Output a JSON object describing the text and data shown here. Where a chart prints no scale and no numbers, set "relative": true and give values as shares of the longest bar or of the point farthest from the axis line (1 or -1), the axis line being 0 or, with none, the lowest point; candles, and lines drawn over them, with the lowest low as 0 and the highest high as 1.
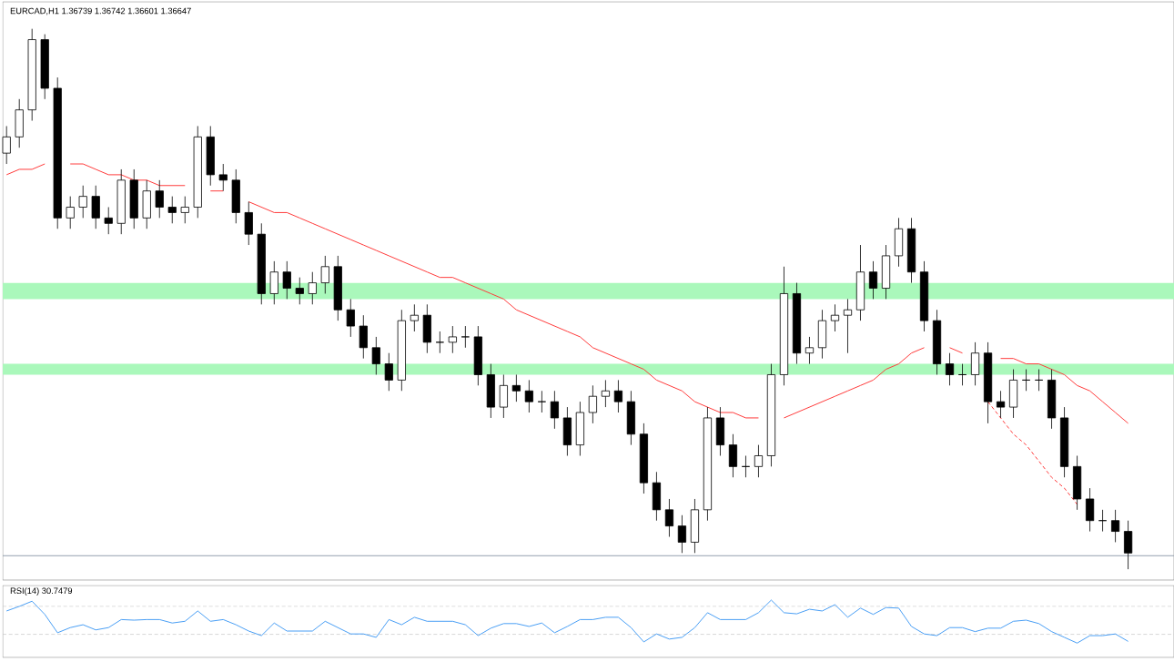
{
  "chart_data": [
    {
      "type": "candlestick",
      "title": "EURCAD,H1  1.36739 1.36742 1.36601 1.36647",
      "relative": true,
      "categories": [
        null,
        null,
        null,
        null,
        null,
        null,
        null,
        null,
        null,
        null,
        null,
        null,
        null,
        null,
        null,
        null,
        null,
        null,
        null,
        null,
        null,
        null,
        null,
        null,
        null,
        null,
        null,
        null,
        null,
        null,
        null,
        null,
        null,
        null,
        null,
        null,
        null,
        null,
        null,
        null,
        null,
        null,
        null,
        null,
        null,
        null,
        null,
        null,
        null,
        null,
        null,
        null,
        null,
        null,
        null,
        null,
        null,
        null,
        null,
        null,
        null,
        null,
        null,
        null,
        null,
        null,
        null,
        null,
        null,
        null,
        null,
        null,
        null,
        null,
        null,
        null,
        null,
        null,
        null,
        null,
        null,
        null,
        null,
        null,
        null,
        null,
        null,
        null,
        null
      ],
      "ohlc": [
        [
          0.77,
          0.82,
          0.75,
          0.8
        ],
        [
          0.8,
          0.87,
          0.78,
          0.85
        ],
        [
          0.85,
          1.0,
          0.83,
          0.98
        ],
        [
          0.98,
          0.99,
          0.87,
          0.89
        ],
        [
          0.89,
          0.91,
          0.63,
          0.65
        ],
        [
          0.65,
          0.69,
          0.63,
          0.67
        ],
        [
          0.67,
          0.71,
          0.65,
          0.69
        ],
        [
          0.69,
          0.71,
          0.63,
          0.65
        ],
        [
          0.65,
          0.67,
          0.62,
          0.64
        ],
        [
          0.64,
          0.74,
          0.62,
          0.72
        ],
        [
          0.72,
          0.74,
          0.63,
          0.65
        ],
        [
          0.65,
          0.72,
          0.63,
          0.7
        ],
        [
          0.7,
          0.72,
          0.65,
          0.67
        ],
        [
          0.67,
          0.69,
          0.64,
          0.66
        ],
        [
          0.66,
          0.69,
          0.64,
          0.67
        ],
        [
          0.67,
          0.82,
          0.65,
          0.8
        ],
        [
          0.8,
          0.82,
          0.71,
          0.73
        ],
        [
          0.73,
          0.75,
          0.7,
          0.72
        ],
        [
          0.72,
          0.74,
          0.64,
          0.66
        ],
        [
          0.66,
          0.68,
          0.6,
          0.62
        ],
        [
          0.62,
          0.64,
          0.49,
          0.51
        ],
        [
          0.51,
          0.57,
          0.49,
          0.55
        ],
        [
          0.55,
          0.57,
          0.5,
          0.52
        ],
        [
          0.52,
          0.54,
          0.49,
          0.51
        ],
        [
          0.51,
          0.55,
          0.49,
          0.53
        ],
        [
          0.53,
          0.58,
          0.51,
          0.56
        ],
        [
          0.56,
          0.58,
          0.46,
          0.48
        ],
        [
          0.48,
          0.5,
          0.43,
          0.45
        ],
        [
          0.45,
          0.47,
          0.39,
          0.41
        ],
        [
          0.41,
          0.43,
          0.36,
          0.38
        ],
        [
          0.38,
          0.4,
          0.33,
          0.35
        ],
        [
          0.35,
          0.48,
          0.33,
          0.46
        ],
        [
          0.46,
          0.49,
          0.44,
          0.47
        ],
        [
          0.47,
          0.49,
          0.4,
          0.42
        ],
        [
          0.42,
          0.44,
          0.4,
          0.42
        ],
        [
          0.42,
          0.45,
          0.4,
          0.43
        ],
        [
          0.43,
          0.45,
          0.41,
          0.43
        ],
        [
          0.43,
          0.45,
          0.34,
          0.36
        ],
        [
          0.36,
          0.38,
          0.28,
          0.3
        ],
        [
          0.3,
          0.36,
          0.28,
          0.34
        ],
        [
          0.34,
          0.36,
          0.31,
          0.33
        ],
        [
          0.33,
          0.35,
          0.29,
          0.31
        ],
        [
          0.31,
          0.33,
          0.29,
          0.31
        ],
        [
          0.31,
          0.33,
          0.26,
          0.28
        ],
        [
          0.28,
          0.3,
          0.21,
          0.23
        ],
        [
          0.23,
          0.31,
          0.21,
          0.29
        ],
        [
          0.29,
          0.34,
          0.27,
          0.32
        ],
        [
          0.32,
          0.35,
          0.3,
          0.33
        ],
        [
          0.33,
          0.35,
          0.29,
          0.31
        ],
        [
          0.31,
          0.33,
          0.23,
          0.25
        ],
        [
          0.25,
          0.27,
          0.14,
          0.16
        ],
        [
          0.16,
          0.18,
          0.09,
          0.11
        ],
        [
          0.11,
          0.13,
          0.06,
          0.08
        ],
        [
          0.08,
          0.1,
          0.03,
          0.05
        ],
        [
          0.05,
          0.13,
          0.03,
          0.11
        ],
        [
          0.11,
          0.3,
          0.09,
          0.28
        ],
        [
          0.28,
          0.3,
          0.21,
          0.23
        ],
        [
          0.23,
          0.25,
          0.17,
          0.19
        ],
        [
          0.19,
          0.21,
          0.17,
          0.19
        ],
        [
          0.19,
          0.23,
          0.17,
          0.21
        ],
        [
          0.21,
          0.38,
          0.19,
          0.36
        ],
        [
          0.36,
          0.56,
          0.34,
          0.51
        ],
        [
          0.51,
          0.53,
          0.38,
          0.4
        ],
        [
          0.4,
          0.43,
          0.38,
          0.41
        ],
        [
          0.41,
          0.48,
          0.39,
          0.46
        ],
        [
          0.46,
          0.49,
          0.44,
          0.47
        ],
        [
          0.47,
          0.5,
          0.4,
          0.48
        ],
        [
          0.48,
          0.6,
          0.46,
          0.55
        ],
        [
          0.55,
          0.57,
          0.5,
          0.52
        ],
        [
          0.52,
          0.6,
          0.5,
          0.58
        ],
        [
          0.58,
          0.65,
          0.56,
          0.63
        ],
        [
          0.63,
          0.65,
          0.53,
          0.55
        ],
        [
          0.55,
          0.57,
          0.44,
          0.46
        ],
        [
          0.46,
          0.48,
          0.36,
          0.38
        ],
        [
          0.38,
          0.4,
          0.34,
          0.36
        ],
        [
          0.36,
          0.38,
          0.34,
          0.36
        ],
        [
          0.36,
          0.42,
          0.34,
          0.4
        ],
        [
          0.4,
          0.42,
          0.27,
          0.31
        ],
        [
          0.31,
          0.33,
          0.28,
          0.3
        ],
        [
          0.3,
          0.37,
          0.28,
          0.35
        ],
        [
          0.35,
          0.37,
          0.33,
          0.35
        ],
        [
          0.35,
          0.37,
          0.33,
          0.35
        ],
        [
          0.35,
          0.37,
          0.26,
          0.28
        ],
        [
          0.28,
          0.3,
          0.17,
          0.19
        ],
        [
          0.19,
          0.21,
          0.11,
          0.13
        ],
        [
          0.13,
          0.15,
          0.07,
          0.09
        ],
        [
          0.09,
          0.11,
          0.07,
          0.09
        ],
        [
          0.09,
          0.11,
          0.05,
          0.07
        ],
        [
          0.07,
          0.09,
          0.0,
          0.03
        ]
      ],
      "series": [
        {
          "type": "line",
          "color": "#ff3c3c",
          "values": [
            0.73,
            0.74,
            0.74,
            0.75,
            null,
            0.75,
            0.75,
            0.74,
            0.73,
            0.73,
            0.72,
            0.72,
            0.71,
            0.71,
            0.71,
            null,
            0.7,
            0.7,
            null,
            0.68,
            0.67,
            0.66,
            0.66,
            0.65,
            0.64,
            0.63,
            0.62,
            0.61,
            0.6,
            0.59,
            0.58,
            0.57,
            0.56,
            0.55,
            0.54,
            0.54,
            0.53,
            0.52,
            0.51,
            0.5,
            0.48,
            0.47,
            0.46,
            0.45,
            0.44,
            0.43,
            0.41,
            0.4,
            0.39,
            0.38,
            0.37,
            0.35,
            0.34,
            0.33,
            0.31,
            0.3,
            0.29,
            0.29,
            0.28,
            0.28,
            null,
            0.28,
            0.29,
            0.3,
            0.31,
            0.32,
            0.33,
            0.34,
            0.35,
            0.37,
            0.38,
            0.4,
            0.41,
            null,
            0.41,
            0.4,
            null,
            null,
            0.39,
            0.39,
            0.38,
            0.38,
            0.37,
            0.36,
            0.34,
            0.33,
            0.31,
            0.29,
            0.27
          ]
        },
        {
          "type": "line",
          "line_style": "dashed",
          "color": "#ff3c3c",
          "values": [
            null,
            null,
            null,
            null,
            null,
            null,
            null,
            null,
            null,
            null,
            null,
            null,
            null,
            null,
            null,
            null,
            null,
            null,
            null,
            null,
            null,
            null,
            null,
            null,
            null,
            null,
            null,
            null,
            null,
            null,
            null,
            null,
            null,
            null,
            null,
            null,
            null,
            null,
            null,
            null,
            null,
            null,
            null,
            null,
            null,
            null,
            null,
            null,
            null,
            null,
            null,
            null,
            null,
            null,
            null,
            null,
            null,
            null,
            null,
            null,
            null,
            null,
            null,
            null,
            null,
            null,
            null,
            null,
            null,
            null,
            null,
            null,
            null,
            null,
            null,
            null,
            null,
            0.31,
            0.28,
            0.25,
            0.23,
            0.2,
            0.17,
            0.15,
            0.12,
            null,
            null,
            null,
            null
          ]
        }
      ],
      "bands": [
        {
          "axis": "y",
          "from": 0.5,
          "to": 0.53,
          "color": "#aaf8bb"
        },
        {
          "axis": "y",
          "from": 0.36,
          "to": 0.38,
          "color": "#aaf8bb"
        }
      ],
      "ref_lines": [
        {
          "axis": "y",
          "value": 0.025,
          "color": "#8c99a8"
        }
      ]
    },
    {
      "type": "line",
      "title": "RSI(14) 30.7479",
      "relative": true,
      "categories": [
        null,
        null,
        null,
        null,
        null,
        null,
        null,
        null,
        null,
        null,
        null,
        null,
        null,
        null,
        null,
        null,
        null,
        null,
        null,
        null,
        null,
        null,
        null,
        null,
        null,
        null,
        null,
        null,
        null,
        null,
        null,
        null,
        null,
        null,
        null,
        null,
        null,
        null,
        null,
        null,
        null,
        null,
        null,
        null,
        null,
        null,
        null,
        null,
        null,
        null,
        null,
        null,
        null,
        null,
        null,
        null,
        null,
        null,
        null,
        null,
        null,
        null,
        null,
        null,
        null,
        null,
        null,
        null,
        null,
        null,
        null,
        null,
        null,
        null,
        null,
        null,
        null,
        null,
        null,
        null,
        null,
        null,
        null,
        null,
        null,
        null,
        null,
        null,
        null
      ],
      "series": [
        {
          "color": "#4a9ff5",
          "values": [
            0.81,
            0.89,
            0.98,
            0.75,
            0.43,
            0.52,
            0.57,
            0.48,
            0.52,
            0.66,
            0.65,
            0.66,
            0.66,
            0.6,
            0.63,
            0.81,
            0.63,
            0.66,
            0.57,
            0.46,
            0.38,
            0.6,
            0.46,
            0.46,
            0.46,
            0.63,
            0.52,
            0.41,
            0.41,
            0.35,
            0.66,
            0.57,
            0.7,
            0.63,
            0.63,
            0.63,
            0.57,
            0.38,
            0.51,
            0.59,
            0.59,
            0.54,
            0.6,
            0.43,
            0.54,
            0.66,
            0.66,
            0.7,
            0.7,
            0.52,
            0.27,
            0.41,
            0.32,
            0.35,
            0.52,
            0.78,
            0.66,
            0.66,
            0.66,
            0.78,
            1.0,
            0.78,
            0.76,
            0.84,
            0.81,
            0.92,
            0.7,
            0.86,
            0.75,
            0.87,
            0.86,
            0.54,
            0.41,
            0.38,
            0.52,
            0.52,
            0.45,
            0.51,
            0.51,
            0.63,
            0.65,
            0.59,
            0.45,
            0.35,
            0.25,
            0.38,
            0.38,
            0.41,
            0.28
          ]
        }
      ],
      "ref_lines": [
        {
          "axis": "y",
          "value": 0.89,
          "color": "#c8c8c8",
          "line_style": "dashed"
        },
        {
          "axis": "y",
          "value": 0.4,
          "color": "#c8c8c8",
          "line_style": "dashed"
        }
      ]
    }
  ]
}
